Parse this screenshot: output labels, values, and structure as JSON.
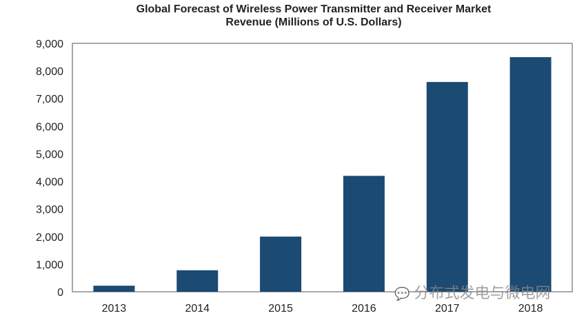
{
  "chart_data": {
    "type": "bar",
    "title": "Global Forecast of Wireless Power Transmitter and Receiver Market",
    "subtitle": "Revenue  (Millions of U.S. Dollars)",
    "categories": [
      "2013",
      "2014",
      "2015",
      "2016",
      "2017",
      "2018"
    ],
    "values": [
      220,
      780,
      2000,
      4200,
      7600,
      8500
    ],
    "ylim": [
      0,
      9000
    ],
    "yticks": [
      "0",
      "1,000",
      "2,000",
      "3,000",
      "4,000",
      "5,000",
      "6,000",
      "7,000",
      "8,000",
      "9,000"
    ],
    "grid": false,
    "bar_color": "#1b4a72"
  },
  "watermark": "分布式发电与微电网"
}
